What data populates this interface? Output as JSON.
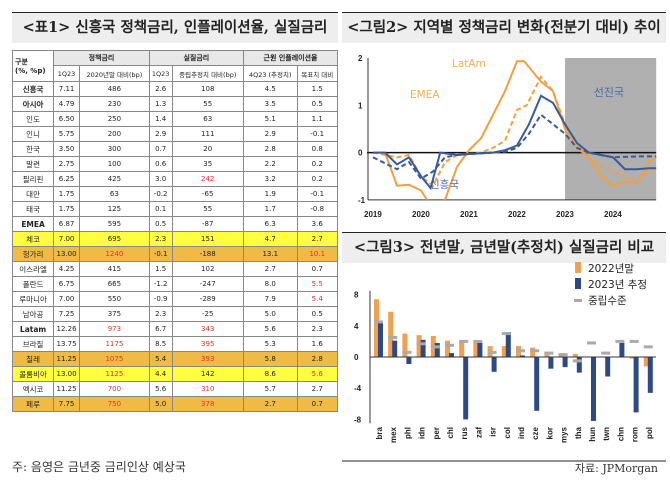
{
  "table": {
    "title": "<표1> 신흥국 정책금리, 인플레이션율, 실질금리",
    "row_header": [
      "구분",
      "(%, %p)"
    ],
    "groups": [
      "정책금리",
      "실질금리",
      "근원 인플레이션율"
    ],
    "subheaders": [
      "1Q23",
      "2020년말 대비(bp)",
      "1Q23",
      "중립추정치 대비(bp)",
      "4Q23 (추정치)",
      "목표치 대비"
    ],
    "rows": [
      {
        "name": "신흥국",
        "bold": true,
        "vals": [
          "7.11",
          "486",
          "2.6",
          "108",
          "4.5",
          "1.5"
        ]
      },
      {
        "name": "아시아",
        "bold": true,
        "vals": [
          "4.79",
          "230",
          "1.3",
          "55",
          "3.5",
          "0.5"
        ]
      },
      {
        "name": "인도",
        "vals": [
          "6.50",
          "250",
          "1.4",
          "63",
          "5.1",
          "1.1"
        ]
      },
      {
        "name": "인니",
        "vals": [
          "5.75",
          "200",
          "2.9",
          "111",
          "2.9",
          "-0.1"
        ]
      },
      {
        "name": "한국",
        "vals": [
          "3.50",
          "300",
          "0.7",
          "20",
          "2.8",
          "0.8"
        ]
      },
      {
        "name": "말련",
        "vals": [
          "2.75",
          "100",
          "0.6",
          "35",
          "2.2",
          "0.2"
        ]
      },
      {
        "name": "필리핀",
        "vals": [
          "6.25",
          "425",
          "3.0",
          "242",
          "3.2",
          "0.2"
        ],
        "red": [
          3
        ]
      },
      {
        "name": "대만",
        "vals": [
          "1.75",
          "63",
          "-0.2",
          "-65",
          "1.9",
          "-0.1"
        ]
      },
      {
        "name": "태국",
        "vals": [
          "1.75",
          "125",
          "0.1",
          "55",
          "1.7",
          "-0.8"
        ]
      },
      {
        "name": "EMEA",
        "bold": true,
        "vals": [
          "6.87",
          "595",
          "0.5",
          "-87",
          "6.3",
          "3.6"
        ]
      },
      {
        "name": "체코",
        "hl": "yellow",
        "vals": [
          "7.00",
          "695",
          "2.3",
          "151",
          "4.7",
          "2.7"
        ]
      },
      {
        "name": "헝가리",
        "hl": "orange",
        "vals": [
          "13.00",
          "1240",
          "-0.1",
          "-188",
          "13.1",
          "10.1"
        ],
        "red": [
          1,
          5
        ]
      },
      {
        "name": "이스라엘",
        "vals": [
          "4.25",
          "415",
          "1.5",
          "102",
          "2.7",
          "0.7"
        ]
      },
      {
        "name": "폴란드",
        "vals": [
          "6.75",
          "665",
          "-1.2",
          "-247",
          "8.0",
          "5.5"
        ],
        "red": [
          5
        ]
      },
      {
        "name": "루마니아",
        "vals": [
          "7.00",
          "550",
          "-0.9",
          "-289",
          "7.9",
          "5.4"
        ],
        "red": [
          5
        ]
      },
      {
        "name": "남아공",
        "vals": [
          "7.25",
          "375",
          "2.3",
          "-25",
          "5.0",
          "0.5"
        ]
      },
      {
        "name": "Latam",
        "bold": true,
        "vals": [
          "12.26",
          "973",
          "6.7",
          "343",
          "5.6",
          "2.3"
        ],
        "red": [
          1,
          3
        ]
      },
      {
        "name": "브라질",
        "vals": [
          "13.75",
          "1175",
          "8.5",
          "395",
          "5.3",
          "1.6"
        ],
        "red": [
          1,
          3
        ]
      },
      {
        "name": "칠레",
        "hl": "orange",
        "vals": [
          "11.25",
          "1075",
          "5.4",
          "393",
          "5.8",
          "2.8"
        ],
        "red": [
          1,
          3
        ]
      },
      {
        "name": "콜롬비아",
        "hl": "yellow",
        "vals": [
          "13.00",
          "1125",
          "4.4",
          "142",
          "8.6",
          "5.6"
        ],
        "red": [
          1,
          5
        ]
      },
      {
        "name": "멕시코",
        "vals": [
          "11.25",
          "700",
          "5.6",
          "310",
          "5.7",
          "2.7"
        ],
        "red": [
          1,
          3
        ]
      },
      {
        "name": "페루",
        "hl": "orange",
        "vals": [
          "7.75",
          "750",
          "5.0",
          "378",
          "2.7",
          "0.7"
        ],
        "red": [
          1,
          3
        ]
      }
    ],
    "note": "주: 음영은 금년중 금리인상 예상국"
  },
  "source": "자료: JPMorgan",
  "chart_data": [
    {
      "type": "line",
      "title": "<그림2> 지역별 정책금리 변화(전분기 대비) 추이",
      "xlim": [
        2019,
        2024.9
      ],
      "ylim": [
        -1,
        2
      ],
      "yticks": [
        "2",
        "1",
        "0",
        "-1"
      ],
      "xticks": [
        "2019",
        "2020",
        "2021",
        "2022",
        "2023",
        "2024"
      ],
      "shaded_from": 2023,
      "shaded_label": "선진국",
      "shade_color": "#b0b0b0",
      "series": [
        {
          "name": "LatAm",
          "color": "#f0a040",
          "style": "solid",
          "x": [
            2019,
            2019.25,
            2019.5,
            2019.75,
            2020,
            2020.25,
            2020.5,
            2020.75,
            2021,
            2021.25,
            2021.5,
            2021.75,
            2022,
            2022.15,
            2022.5,
            2022.75,
            2023,
            2023.25,
            2023.5,
            2023.75,
            2024,
            2024.25,
            2024.5,
            2024.75,
            2024.9
          ],
          "y": [
            0,
            0,
            -0.7,
            -0.68,
            -0.8,
            -1.2,
            -1.0,
            -0.3,
            0.05,
            0.3,
            0.8,
            1.3,
            1.93,
            1.93,
            1.5,
            1.3,
            0.5,
            0.1,
            -0.1,
            -0.5,
            -0.7,
            -0.62,
            -0.65,
            -0.2,
            -0.1
          ]
        },
        {
          "name": "EMEA",
          "color": "#f0a040",
          "style": "dashed",
          "x": [
            2019,
            2019.5,
            2019.75,
            2020,
            2020.25,
            2020.5,
            2020.75,
            2021,
            2021.25,
            2021.5,
            2021.75,
            2022,
            2022.2,
            2022.5,
            2022.75,
            2023,
            2023.25,
            2023.5,
            2023.75,
            2024,
            2024.25,
            2024.5,
            2024.75,
            2024.9
          ],
          "y": [
            0,
            -0.1,
            -0.05,
            -0.5,
            -0.7,
            -0.2,
            -0.05,
            -0.03,
            0,
            0.1,
            0.25,
            0.9,
            1.0,
            1.6,
            1.3,
            0.6,
            0.2,
            -0.1,
            -0.3,
            -0.4,
            -0.5,
            -0.6,
            -0.4,
            -0.3
          ]
        },
        {
          "name": "선진국",
          "color": "#3a5a98",
          "style": "solid",
          "x": [
            2019,
            2019.25,
            2019.5,
            2019.75,
            2020,
            2020.2,
            2020.4,
            2020.75,
            2021,
            2021.5,
            2021.75,
            2022,
            2022.25,
            2022.5,
            2022.75,
            2023,
            2023.25,
            2023.5,
            2023.75,
            2024,
            2024.25,
            2024.5,
            2024.75,
            2024.9
          ],
          "y": [
            0,
            0,
            -0.25,
            -0.1,
            -0.5,
            -0.75,
            0,
            -0.05,
            -0.03,
            0,
            0.05,
            0.15,
            0.6,
            1.2,
            1.05,
            0.6,
            0.2,
            0,
            -0.05,
            -0.1,
            -0.35,
            -0.35,
            -0.33,
            -0.33
          ]
        },
        {
          "name": "신흥국",
          "color": "#3a5a98",
          "style": "dashed",
          "x": [
            2019,
            2019.5,
            2019.75,
            2020,
            2020.25,
            2020.5,
            2020.75,
            2021,
            2021.5,
            2021.75,
            2022,
            2022.25,
            2022.5,
            2022.75,
            2023,
            2023.25,
            2023.5,
            2023.75,
            2024,
            2024.5,
            2024.9
          ],
          "y": [
            -0.1,
            -0.35,
            -0.2,
            -0.55,
            -0.4,
            -0.1,
            -0.05,
            -0.03,
            0,
            0.02,
            0.1,
            0.4,
            0.8,
            0.6,
            0.4,
            0.1,
            0,
            -0.05,
            -0.1,
            -0.08,
            -0.08
          ]
        }
      ]
    },
    {
      "type": "bar",
      "title": "<그림3> 전년말, 금년말(추정치) 실질금리 비교",
      "ylim": [
        -8,
        8
      ],
      "yticks": [
        "8",
        "4",
        "0",
        "-4",
        "-8"
      ],
      "legend": "top-right",
      "categories": [
        "bra",
        "mex",
        "phl",
        "idn",
        "per",
        "chl",
        "rus",
        "zaf",
        "isr",
        "col",
        "ind",
        "cze",
        "kor",
        "mys",
        "tha",
        "hun",
        "twn",
        "chn",
        "rom",
        "pol"
      ],
      "series": [
        {
          "name": "2022년말",
          "color": "#f0a050",
          "values": [
            7.4,
            5.8,
            3.0,
            2.8,
            2.7,
            2.1,
            2.0,
            2.0,
            1.4,
            1.4,
            1.4,
            1.2,
            0.6,
            0.5,
            0.4,
            0,
            0,
            0,
            -0.2,
            -1.2
          ]
        },
        {
          "name": "2023년 추정",
          "color": "#2e4a86",
          "values": [
            4.4,
            2.1,
            -0.9,
            2.2,
            1.8,
            0.5,
            -8.0,
            1.8,
            -1.9,
            3.2,
            0.2,
            -6.9,
            -1.5,
            -1.3,
            -2.0,
            -8.2,
            -2.5,
            1.8,
            -7.1,
            -4.6
          ]
        },
        {
          "name": "중립수준",
          "color": "#aaaaaa",
          "marker": "dash",
          "values": [
            4.5,
            2.5,
            0.6,
            1.7,
            1.3,
            1.5,
            2.0,
            2.0,
            0.6,
            3.0,
            0.8,
            0.8,
            0.5,
            0.3,
            -0.5,
            1.8,
            0.5,
            2.0,
            2.0,
            1.3
          ]
        }
      ]
    }
  ]
}
